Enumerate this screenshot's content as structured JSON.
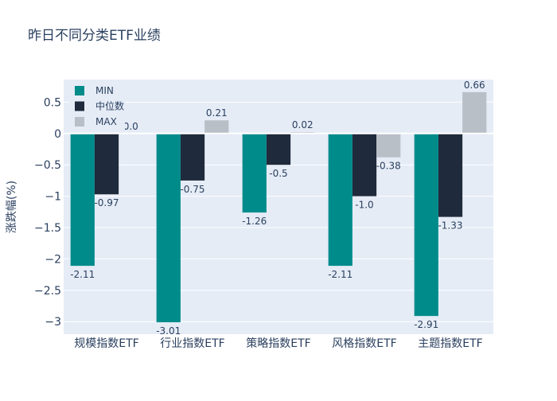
{
  "chart_data": {
    "type": "bar",
    "title": "昨日不同分类ETF业绩",
    "xlabel": "",
    "ylabel": "涨跌幅(%)",
    "categories": [
      "规模指数ETF",
      "行业指数ETF",
      "策略指数ETF",
      "风格指数ETF",
      "主题指数ETF"
    ],
    "series": [
      {
        "name": "MIN",
        "values": [
          -2.11,
          -3.01,
          -1.26,
          -2.11,
          -2.91
        ],
        "labels": [
          "-2.11",
          "-3.01",
          "-1.26",
          "-2.11",
          "-2.91"
        ],
        "color": "#008b8b"
      },
      {
        "name": "中位数",
        "values": [
          -0.97,
          -0.75,
          -0.5,
          -1.0,
          -1.33
        ],
        "labels": [
          "-0.97",
          "-0.75",
          "-0.5",
          "-1.0",
          "-1.33"
        ],
        "color": "#1f2a3c"
      },
      {
        "name": "MAX",
        "values": [
          0.0,
          0.21,
          0.02,
          -0.38,
          0.66
        ],
        "labels": [
          "0.0",
          "0.21",
          "0.02",
          "-0.38",
          "0.66"
        ],
        "color": "#b8bfc7"
      }
    ],
    "yticks": [
      0.5,
      0,
      -0.5,
      -1,
      -1.5,
      -2,
      -2.5,
      -3
    ],
    "ytick_labels": [
      "0.5",
      "0",
      "−0.5",
      "−1",
      "−1.5",
      "−2",
      "−2.5",
      "−3"
    ],
    "ylim": [
      -3.2,
      0.86
    ],
    "grid": true,
    "legend_position": "top-left",
    "plot_bgcolor": "#e5ecf6"
  }
}
